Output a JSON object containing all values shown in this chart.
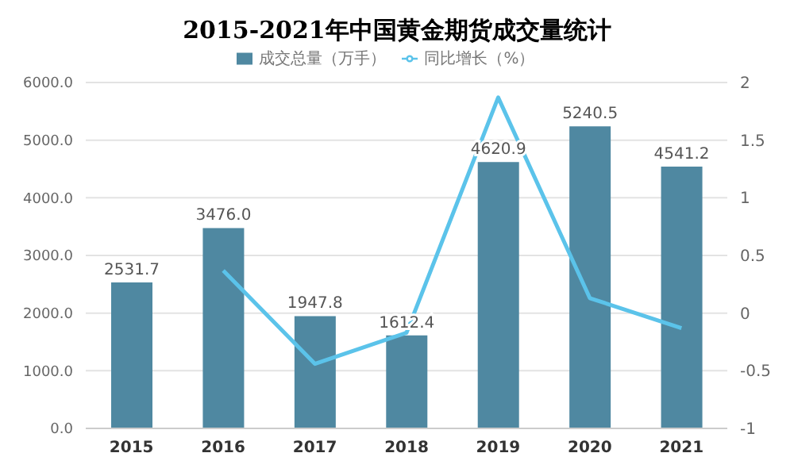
{
  "chart_data": {
    "type": "bar",
    "title": "2015-2021年中国黄金期货成交量统计",
    "categories": [
      "2015",
      "2016",
      "2017",
      "2018",
      "2019",
      "2020",
      "2021"
    ],
    "series": [
      {
        "name": "成交总量（万手）",
        "color": "#4f88a1",
        "values": [
          2531.7,
          3476.0,
          1947.8,
          1612.4,
          4620.9,
          5240.5,
          4541.2
        ],
        "value_labels": [
          "2531.7",
          "3476.0",
          "1947.8",
          "1612.4",
          "4620.9",
          "5240.5",
          "4541.2"
        ]
      },
      {
        "name": "同比增长（%）",
        "type": "line",
        "axis": "y2",
        "color": "#5bc3ea",
        "values": [
          null,
          0.37,
          -0.44,
          -0.17,
          1.87,
          0.13,
          -0.13
        ]
      }
    ],
    "ylim": [
      0,
      6000
    ],
    "yticks": [
      {
        "value": 0,
        "label": "0.0"
      },
      {
        "value": 1000,
        "label": "1000.0"
      },
      {
        "value": 2000,
        "label": "2000.0"
      },
      {
        "value": 3000,
        "label": "3000.0"
      },
      {
        "value": 4000,
        "label": "4000.0"
      },
      {
        "value": 5000,
        "label": "5000.0"
      },
      {
        "value": 6000,
        "label": "6000.0"
      }
    ],
    "y2lim": [
      -1,
      2
    ],
    "y2ticks": [
      -1,
      -0.5,
      0,
      0.5,
      1,
      1.5,
      2
    ],
    "grid": "y",
    "legend": "top",
    "marker": "none"
  }
}
